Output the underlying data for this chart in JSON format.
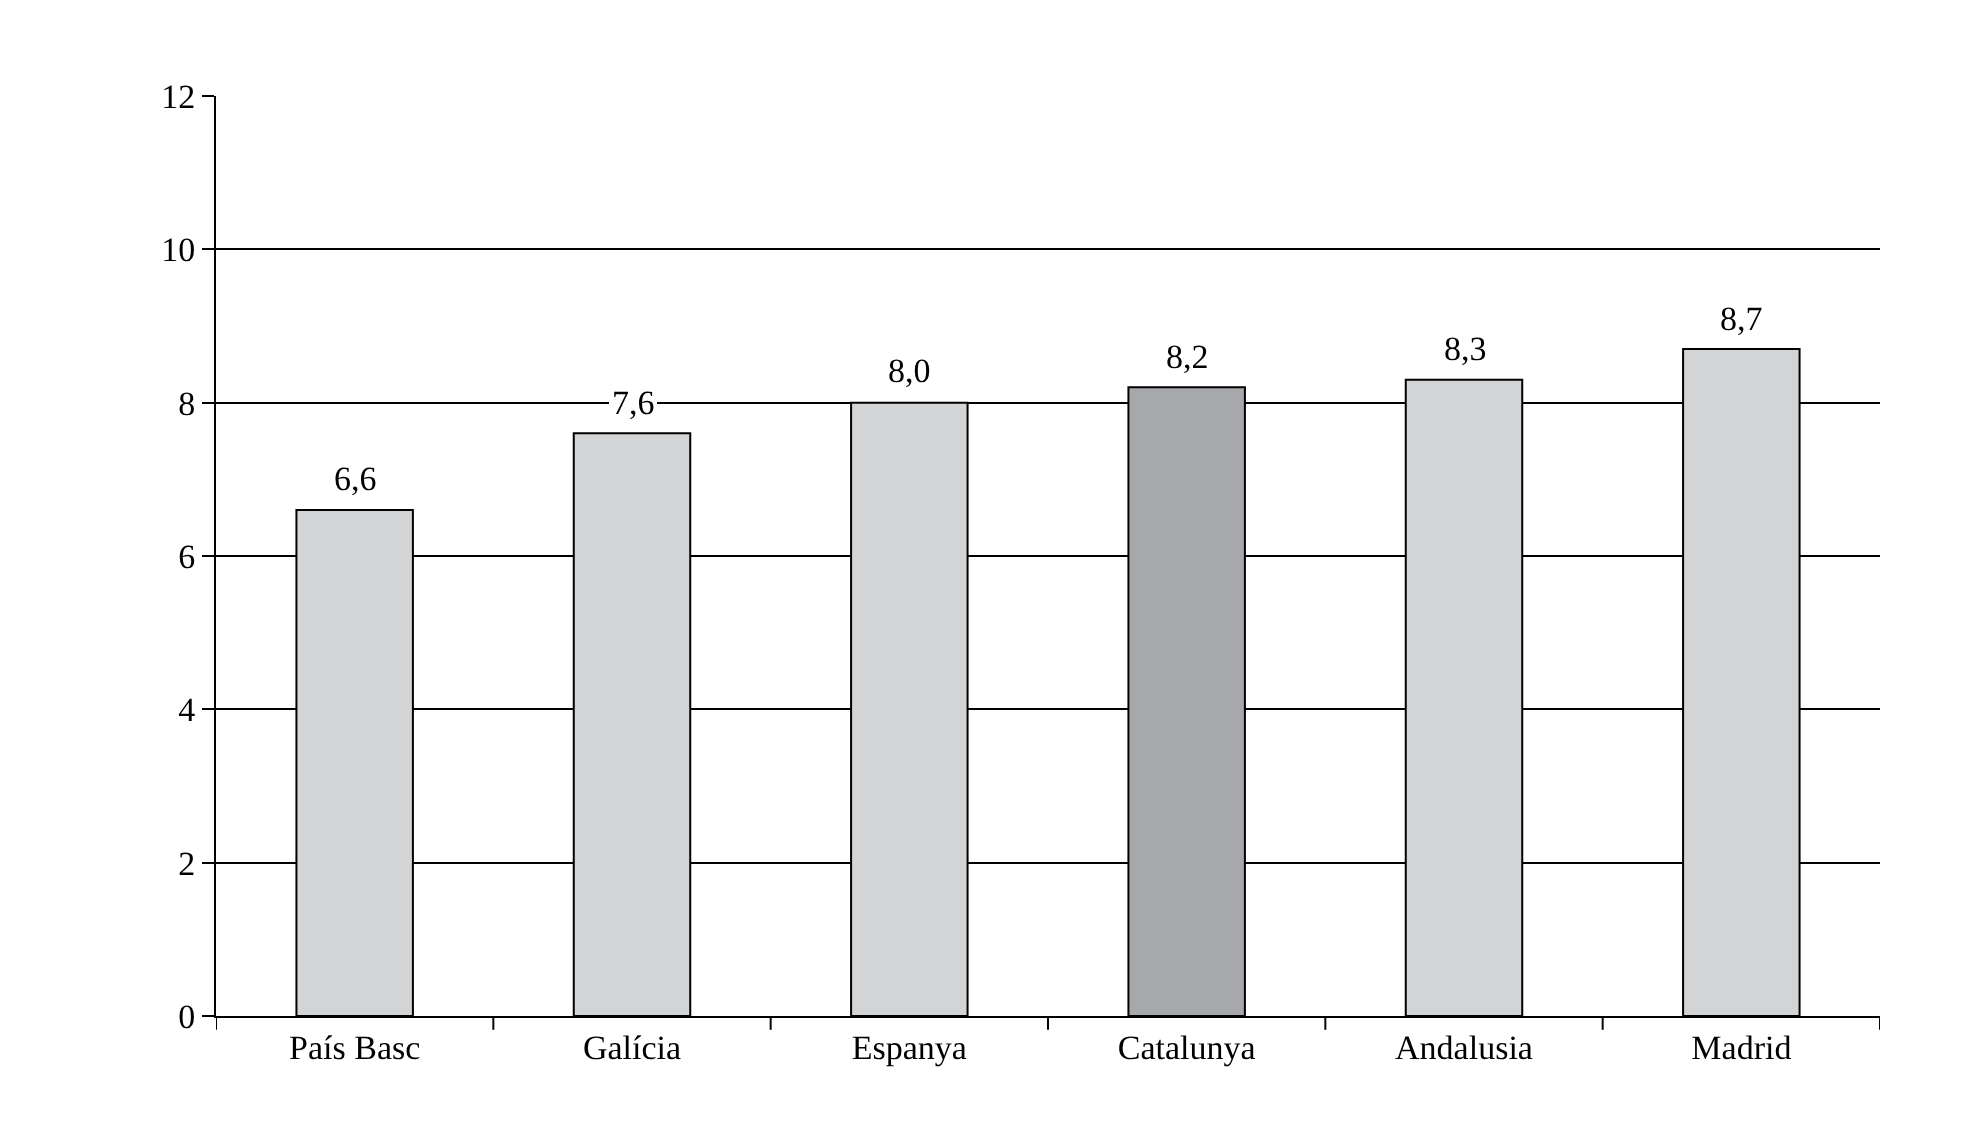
{
  "chart_data": {
    "type": "bar",
    "categories": [
      "País Basc",
      "Galícia",
      "Espanya",
      "Catalunya",
      "Andalusia",
      "Madrid"
    ],
    "values": [
      6.6,
      7.6,
      8.0,
      8.2,
      8.3,
      8.7
    ],
    "colors": [
      "#d3d4d6",
      "#d3d4d6",
      "#d3d4d6",
      "#a7a8ab",
      "#d3d4d6",
      "#d3d4d6"
    ],
    "value_labels": [
      "6,6",
      "7,6",
      "8,0",
      "8,2",
      "8,3",
      "8,7"
    ],
    "ylim": [
      0,
      12
    ],
    "yticks": [
      0,
      2,
      4,
      6,
      8,
      10,
      12
    ],
    "grid": "y"
  }
}
